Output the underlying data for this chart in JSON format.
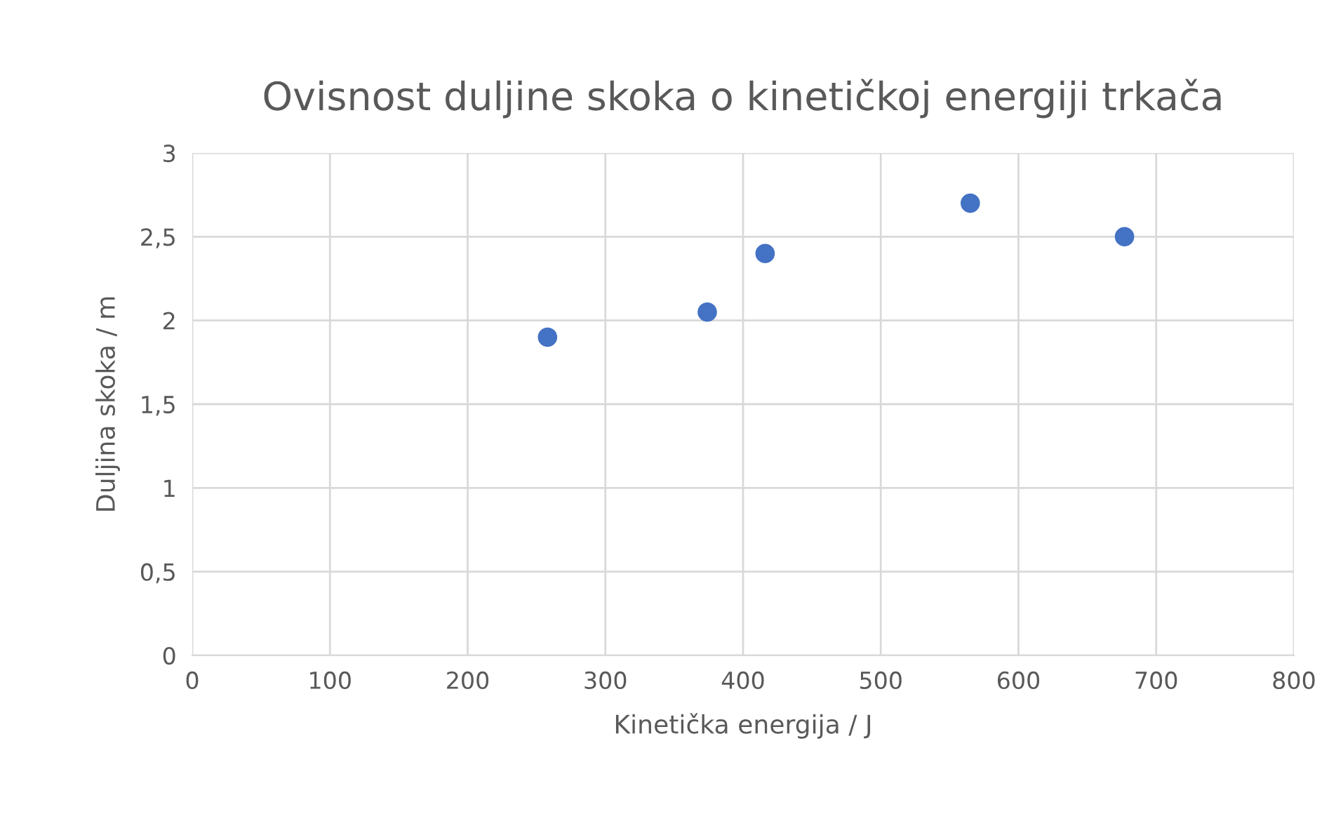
{
  "chart_data": {
    "type": "scatter",
    "title": "Ovisnost duljine skoka o kinetičkoj energiji trkača",
    "xlabel": "Kinetička energija / J",
    "ylabel": "Duljina skoka / m",
    "x": [
      258,
      374,
      416,
      565,
      677
    ],
    "series": [
      {
        "color": "#4472c4",
        "values": [
          1.9,
          2.05,
          2.4,
          2.7,
          2.5
        ]
      }
    ],
    "xlim": [
      0,
      800
    ],
    "xticks": [
      0,
      100,
      200,
      300,
      400,
      500,
      600,
      700,
      800
    ],
    "ylim": [
      0,
      3
    ],
    "yticks": [
      {
        "value": 0,
        "label": "0"
      },
      {
        "value": 0.5,
        "label": "0,5"
      },
      {
        "value": 1,
        "label": "1"
      },
      {
        "value": 1.5,
        "label": "1,5"
      },
      {
        "value": 2,
        "label": "2"
      },
      {
        "value": 2.5,
        "label": "2,5"
      },
      {
        "value": 3,
        "label": "3"
      }
    ],
    "grid": true,
    "marker": "circle",
    "legend": false
  }
}
